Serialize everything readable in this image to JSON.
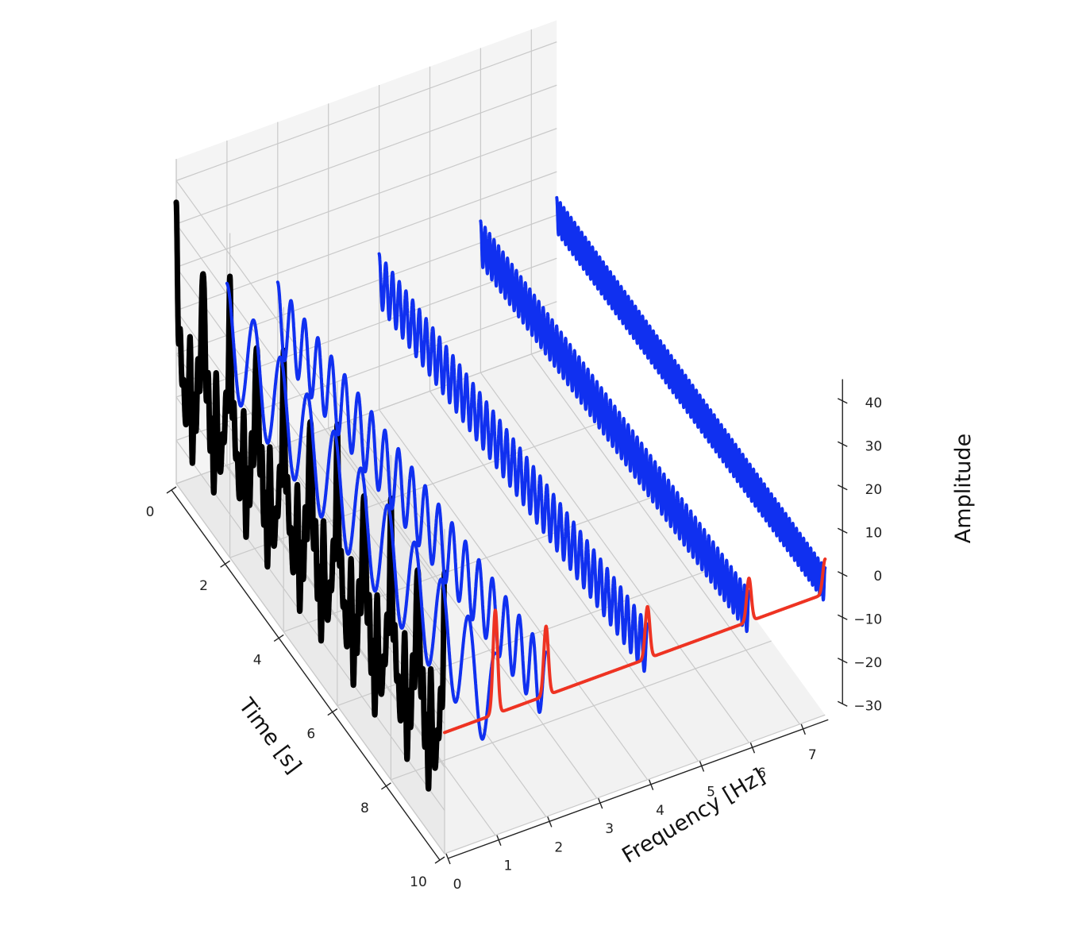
{
  "chart_data": {
    "type": "line",
    "projection": "3d",
    "title": "",
    "xlabel": "Time [s]",
    "ylabel": "Frequency [Hz]",
    "zlabel": "Amplitude",
    "xlim": [
      0,
      10
    ],
    "ylim": [
      0,
      7.5
    ],
    "zlim": [
      -30,
      45
    ],
    "x_ticks": [
      0,
      2,
      4,
      6,
      8,
      10
    ],
    "y_ticks": [
      0,
      1,
      2,
      3,
      4,
      5,
      6,
      7
    ],
    "z_ticks": [
      -30,
      -20,
      -10,
      0,
      10,
      20,
      30,
      40
    ],
    "grid": true,
    "series": [
      {
        "kind": "time-signal",
        "color": "#000000",
        "line_width": 7,
        "freq_plane": 0,
        "components": [
          {
            "freq": 1,
            "amp": 12
          },
          {
            "freq": 2,
            "amp": 8
          },
          {
            "freq": 4,
            "amp": 6
          },
          {
            "freq": 6,
            "amp": 5
          },
          {
            "freq": 7.5,
            "amp": 4
          }
        ]
      },
      {
        "kind": "time-signal",
        "color": "#1030f0",
        "line_width": 4,
        "freq_plane": 1,
        "components": [
          {
            "freq": 1,
            "amp": 12
          }
        ]
      },
      {
        "kind": "time-signal",
        "color": "#1030f0",
        "line_width": 4,
        "freq_plane": 2,
        "components": [
          {
            "freq": 2,
            "amp": 8
          }
        ]
      },
      {
        "kind": "time-signal",
        "color": "#1030f0",
        "line_width": 4,
        "freq_plane": 4,
        "components": [
          {
            "freq": 4,
            "amp": 6
          }
        ]
      },
      {
        "kind": "time-signal",
        "color": "#1030f0",
        "line_width": 4,
        "freq_plane": 6,
        "components": [
          {
            "freq": 6,
            "amp": 5
          }
        ]
      },
      {
        "kind": "time-signal",
        "color": "#1030f0",
        "line_width": 4,
        "freq_plane": 7.5,
        "components": [
          {
            "freq": 7.5,
            "amp": 4
          }
        ]
      },
      {
        "kind": "spectrum",
        "color": "#ee3322",
        "line_width": 4,
        "time_plane": 10,
        "base": -2,
        "peaks": [
          {
            "freq": 1,
            "height": 24
          },
          {
            "freq": 2,
            "height": 16
          },
          {
            "freq": 4,
            "height": 12
          },
          {
            "freq": 6,
            "height": 10
          },
          {
            "freq": 7.5,
            "height": 8
          }
        ]
      }
    ]
  }
}
